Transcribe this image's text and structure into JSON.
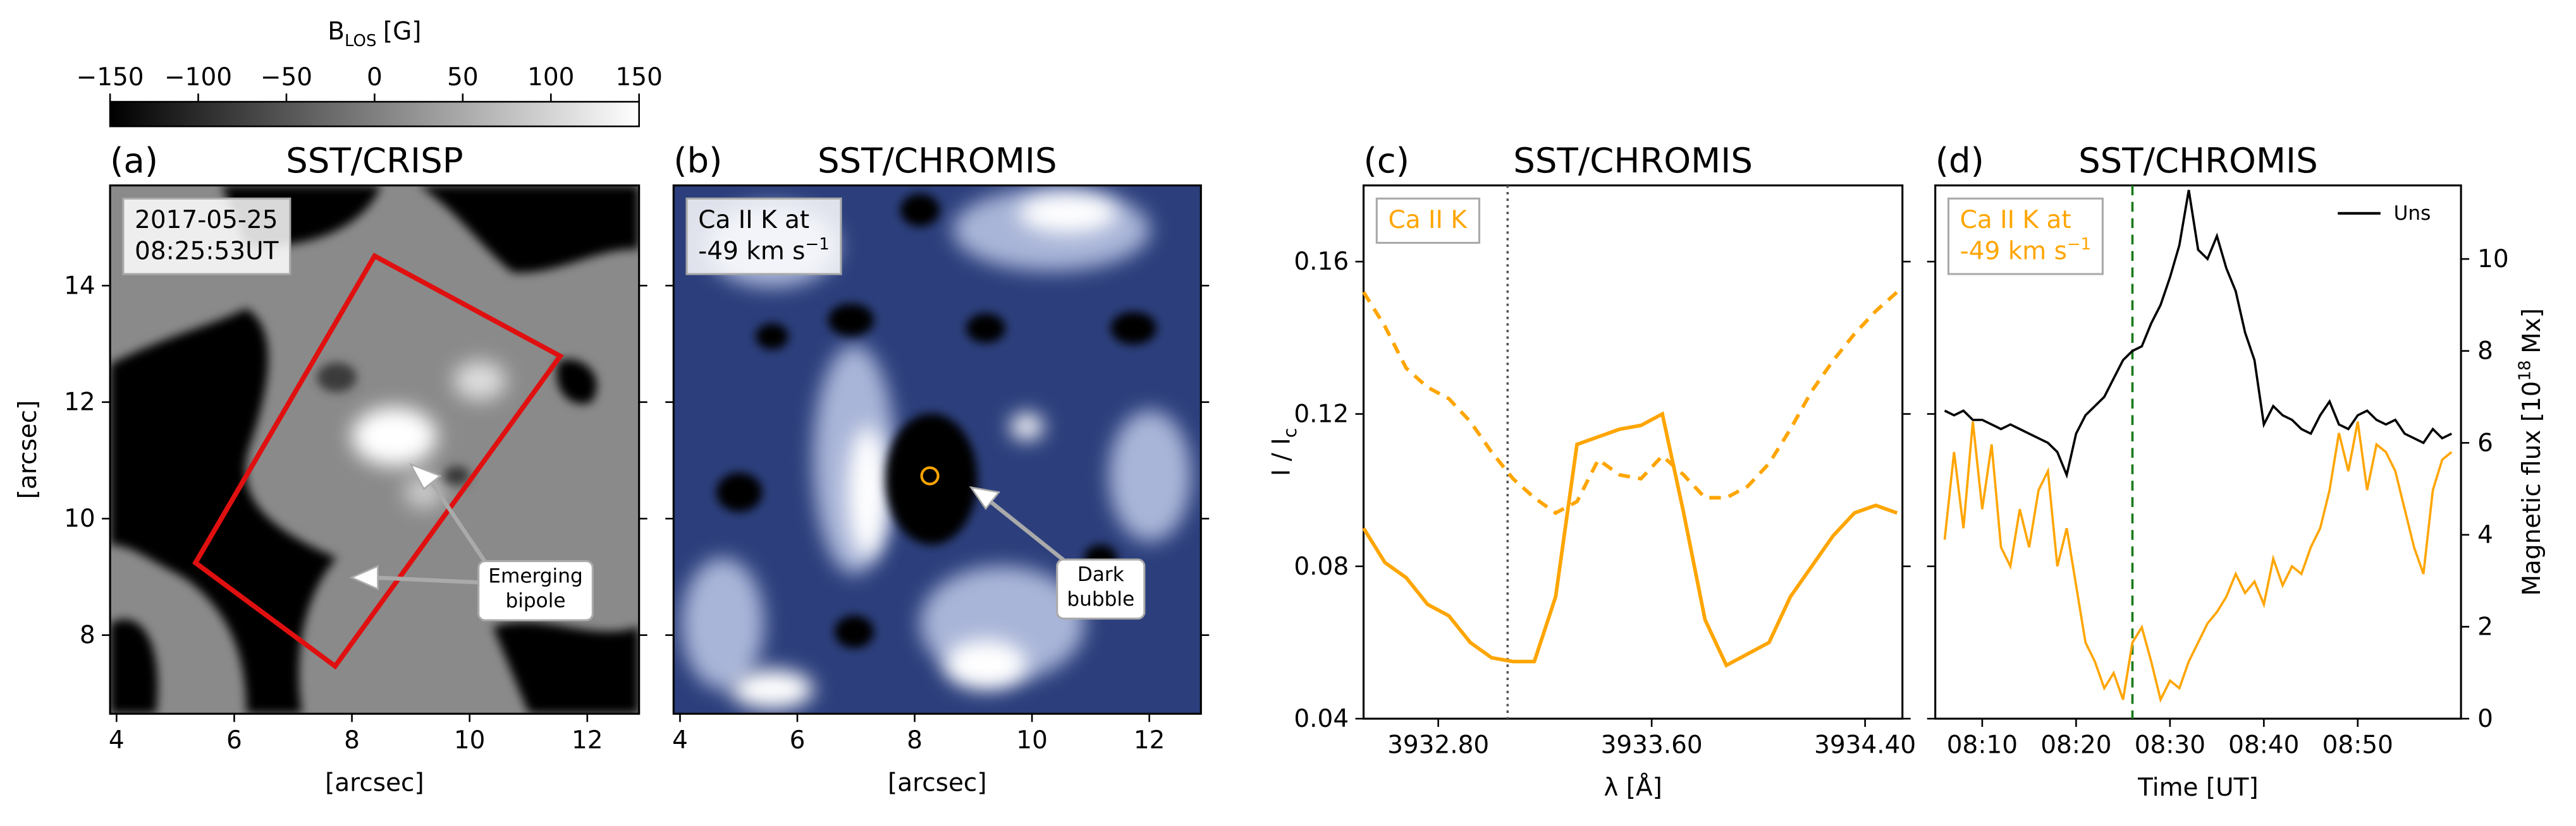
{
  "chart_data": [
    {
      "type": "image",
      "panel": "(a)",
      "title": "SST/CRISP",
      "colormap": "gray",
      "xlim": [
        3.89,
        12.88
      ],
      "ylim": [
        6.65,
        15.72
      ],
      "xticks": [
        4,
        6,
        8,
        10,
        12
      ],
      "yticks": [
        8,
        10,
        12,
        14
      ],
      "xlabel": "[arcsec]",
      "ylabel": "[arcsec]",
      "annotation": {
        "lines": [
          "2017-05-25",
          "08:25:53UT"
        ]
      },
      "callout": {
        "lines": [
          "Emerging",
          "bipole"
        ]
      },
      "colorbar": {
        "label": {
          "symbol": "B",
          "subscript": "LOS",
          "unit": "[G]"
        },
        "lim": [
          -150,
          150
        ],
        "ticks": [
          {
            "value": -150,
            "label": "−150"
          },
          {
            "value": -100,
            "label": "−100"
          },
          {
            "value": -50,
            "label": "−50"
          },
          0,
          50,
          100,
          150
        ]
      }
    },
    {
      "type": "image",
      "panel": "(b)",
      "title": "SST/CHROMIS",
      "colormap": "blue",
      "xlim": [
        3.89,
        12.88
      ],
      "ylim": [
        6.65,
        15.72
      ],
      "xticks": [
        4,
        6,
        8,
        10,
        12
      ],
      "yticks": [
        8,
        10,
        12,
        14
      ],
      "ytick_labels": false,
      "xlabel": "[arcsec]",
      "annotation": {
        "lines": [
          "Ca II K at",
          "-49 km s"
        ],
        "superscript": "−1"
      },
      "callout": {
        "lines": [
          "Dark",
          "bubble"
        ]
      }
    },
    {
      "type": "line",
      "panel": "(c)",
      "title": "SST/CHROMIS",
      "x": [
        3932.52,
        3932.6,
        3932.68,
        3932.76,
        3932.84,
        3932.92,
        3933.0,
        3933.08,
        3933.16,
        3933.24,
        3933.32,
        3933.4,
        3933.48,
        3933.56,
        3933.64,
        3933.72,
        3933.8,
        3933.88,
        3933.96,
        3934.04,
        3934.12,
        3934.2,
        3934.28,
        3934.36,
        3934.44,
        3934.52
      ],
      "series": [
        {
          "color": "#ffa500",
          "dash": false,
          "values": [
            0.09,
            0.081,
            0.077,
            0.07,
            0.067,
            0.06,
            0.056,
            0.055,
            0.055,
            0.072,
            0.112,
            0.114,
            0.116,
            0.117,
            0.12,
            0.094,
            0.066,
            0.054,
            0.057,
            0.06,
            0.072,
            0.08,
            0.088,
            0.094,
            0.096,
            0.094
          ]
        },
        {
          "color": "#ffa500",
          "dash": true,
          "values": [
            0.152,
            0.143,
            0.132,
            0.127,
            0.124,
            0.118,
            0.11,
            0.103,
            0.098,
            0.094,
            0.097,
            0.108,
            0.104,
            0.103,
            0.109,
            0.104,
            0.098,
            0.098,
            0.101,
            0.107,
            0.116,
            0.126,
            0.134,
            0.141,
            0.147,
            0.152
          ]
        }
      ],
      "xlim": [
        3932.52,
        3934.54
      ],
      "ylim": [
        0.04,
        0.18
      ],
      "xticks": [
        {
          "value": 3932.8,
          "label": "3932.80"
        },
        {
          "value": 3933.6,
          "label": "3933.60"
        },
        {
          "value": 3934.4,
          "label": "3934.40"
        }
      ],
      "yticks": [
        0.04,
        0.08,
        0.12,
        0.16
      ],
      "xlabel": "λ [Å]",
      "ylabel": {
        "text": "I / I",
        "subscript": "c"
      },
      "vline": {
        "value": 3933.06,
        "color": "#555555",
        "dash": "1.5,2.5"
      },
      "annotation": {
        "lines": [
          "Ca II K"
        ],
        "color": "#ffa500"
      }
    },
    {
      "type": "line",
      "panel": "(d)",
      "title": "SST/CHROMIS",
      "x": [
        "08:06",
        "08:07",
        "08:08",
        "08:09",
        "08:10",
        "08:11",
        "08:12",
        "08:13",
        "08:14",
        "08:15",
        "08:16",
        "08:17",
        "08:18",
        "08:19",
        "08:20",
        "08:21",
        "08:22",
        "08:23",
        "08:24",
        "08:25",
        "08:26",
        "08:27",
        "08:28",
        "08:29",
        "08:30",
        "08:31",
        "08:32",
        "08:33",
        "08:34",
        "08:35",
        "08:36",
        "08:37",
        "08:38",
        "08:39",
        "08:40",
        "08:41",
        "08:42",
        "08:43",
        "08:44",
        "08:45",
        "08:46",
        "08:47",
        "08:48",
        "08:49",
        "08:50",
        "08:51",
        "08:52",
        "08:53",
        "08:54",
        "08:55",
        "08:56",
        "08:57",
        "08:58",
        "08:59",
        "09:00"
      ],
      "series": [
        {
          "name": "Uns",
          "color": "#000000",
          "axis": "y2",
          "values": [
            6.7,
            6.6,
            6.7,
            6.5,
            6.5,
            6.4,
            6.3,
            6.4,
            6.3,
            6.2,
            6.1,
            6.0,
            5.8,
            5.3,
            6.2,
            6.6,
            6.8,
            7.0,
            7.4,
            7.8,
            8.0,
            8.1,
            8.6,
            9.0,
            9.6,
            10.3,
            11.5,
            10.2,
            10.0,
            10.5,
            9.8,
            9.3,
            8.4,
            7.8,
            6.4,
            6.8,
            6.6,
            6.5,
            6.3,
            6.2,
            6.6,
            6.9,
            6.4,
            6.3,
            6.6,
            6.7,
            6.5,
            6.4,
            6.5,
            6.2,
            6.1,
            6.0,
            6.3,
            6.1,
            6.2
          ]
        },
        {
          "color": "#ffa500",
          "axis": "y",
          "values": [
            0.087,
            0.11,
            0.09,
            0.118,
            0.095,
            0.112,
            0.085,
            0.08,
            0.095,
            0.085,
            0.1,
            0.105,
            0.08,
            0.09,
            0.075,
            0.06,
            0.055,
            0.048,
            0.052,
            0.045,
            0.06,
            0.064,
            0.055,
            0.045,
            0.05,
            0.048,
            0.055,
            0.06,
            0.065,
            0.068,
            0.072,
            0.078,
            0.073,
            0.076,
            0.07,
            0.082,
            0.075,
            0.08,
            0.078,
            0.085,
            0.09,
            0.1,
            0.115,
            0.105,
            0.118,
            0.1,
            0.112,
            0.11,
            0.105,
            0.095,
            0.085,
            0.078,
            0.1,
            0.108,
            0.11
          ]
        }
      ],
      "xlim": [
        "08:05",
        "09:01"
      ],
      "ylim": [
        0.04,
        0.18
      ],
      "y2lim": [
        0,
        11.6
      ],
      "xticks": [
        "08:10",
        "08:20",
        "08:30",
        "08:40",
        "08:50"
      ],
      "yticks": [
        0.04,
        0.08,
        0.12,
        0.16
      ],
      "ytick_labels": false,
      "y2ticks": [
        0,
        2,
        4,
        6,
        8,
        10
      ],
      "xlabel": "Time [UT]",
      "y2label": {
        "text": "Magnetic flux [10",
        "superscript": "18",
        "unit": "Mx]"
      },
      "vline": {
        "value": "08:26",
        "color": "#1a7a1a",
        "dash": "6,4"
      },
      "legend": "upper right",
      "annotation": {
        "lines": [
          "Ca II K at",
          "-49 km s"
        ],
        "superscript": "−1",
        "color": "#ffa500"
      }
    }
  ]
}
